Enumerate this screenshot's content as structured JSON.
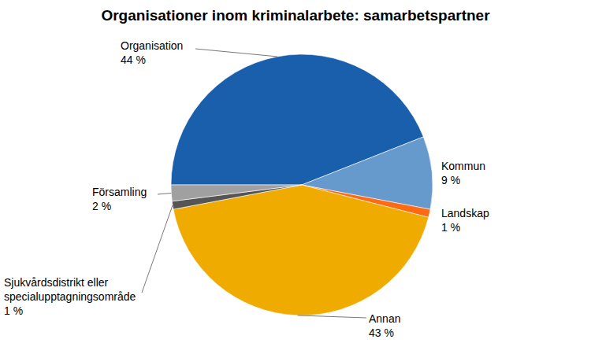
{
  "chart_data": {
    "type": "pie",
    "title": "Organisationer inom kriminalarbete: samarbetspartner",
    "categories": [
      "Organisation",
      "Kommun",
      "Landskap",
      "Annan",
      "Sjukvårdsdistrikt eller specialupptagningsområde",
      "Församling"
    ],
    "values": [
      44,
      9,
      1,
      43,
      1,
      2
    ],
    "value_labels": [
      "44 %",
      "9 %",
      "1 %",
      "43 %",
      "1 %",
      "2 %"
    ],
    "colors": [
      "#1a5fac",
      "#6699cc",
      "#ff6a13",
      "#f0ab00",
      "#555555",
      "#a0a0a0"
    ],
    "data_labels": true
  }
}
